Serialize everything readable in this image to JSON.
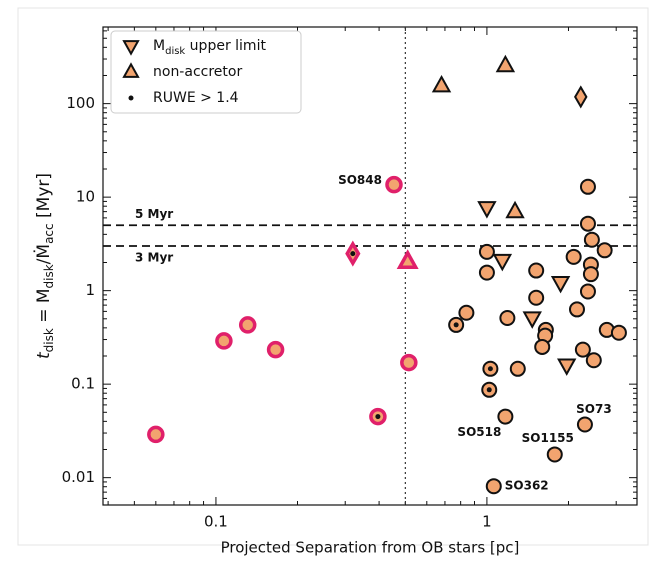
{
  "chart_data": {
    "type": "scatter",
    "xlabel": "Projected Separation from OB stars [pc]",
    "ylabel": [
      "t",
      "disk",
      " = M",
      "disk",
      "/Ṁ",
      "acc",
      " [Myr]"
    ],
    "ylabel_sub": [
      false,
      true,
      false,
      true,
      false,
      true,
      false
    ],
    "xscale": "log",
    "yscale": "log",
    "xlim": [
      0.0383,
      3.58
    ],
    "ylim": [
      0.0051,
      660
    ],
    "xticks": [
      0.1,
      1
    ],
    "yticks": [
      0.01,
      0.1,
      1,
      10,
      100
    ],
    "hlines": [
      {
        "value": 5,
        "label": "5 Myr"
      },
      {
        "value": 3,
        "label": "3 Myr"
      }
    ],
    "vlines": [
      0.5
    ],
    "legend": {
      "loc": "upper left",
      "entries": [
        {
          "marker": "triangle-down",
          "label": [
            "M",
            "disk",
            " upper limit"
          ],
          "sub": [
            false,
            true,
            false
          ]
        },
        {
          "marker": "triangle-up",
          "label": [
            "non-accretor"
          ],
          "sub": [
            false
          ]
        },
        {
          "marker": "dot",
          "label": [
            "RUWE > 1.4"
          ],
          "sub": [
            false
          ]
        }
      ]
    },
    "fill": "#f2a46f",
    "series": [
      {
        "marker": "circle",
        "edgecolor": "#111111",
        "x": [
          2.36,
          2.36,
          2.44,
          2.09,
          2.42,
          2.72,
          2.42,
          1.0,
          1.0,
          2.36,
          1.52,
          1.52,
          0.84,
          0.77,
          1.19,
          2.15,
          1.65,
          1.64,
          1.6,
          2.77,
          3.07,
          2.26,
          2.48,
          1.03,
          1.3,
          1.02,
          1.17,
          1.78,
          2.3,
          1.06
        ],
        "y": [
          12.9,
          5.2,
          3.5,
          2.3,
          1.9,
          2.7,
          1.5,
          2.6,
          1.56,
          0.98,
          1.64,
          0.84,
          0.58,
          0.43,
          0.51,
          0.63,
          0.38,
          0.33,
          0.25,
          0.38,
          0.355,
          0.234,
          0.18,
          0.146,
          0.146,
          0.087,
          0.045,
          0.0177,
          0.037,
          0.0081
        ],
        "ruwe": [
          13,
          23,
          25
        ],
        "labels": [
          null,
          null,
          null,
          null,
          null,
          null,
          null,
          null,
          null,
          null,
          null,
          null,
          null,
          null,
          null,
          null,
          null,
          null,
          null,
          null,
          null,
          null,
          null,
          null,
          null,
          null,
          "SO518",
          "SO1155",
          "SO73",
          "SO362"
        ]
      },
      {
        "marker": "triangle-up",
        "edgecolor": "#111111",
        "x": [
          0.68,
          1.17,
          1.27
        ],
        "y": [
          155,
          255,
          7.0
        ]
      },
      {
        "marker": "diamond",
        "edgecolor": "#111111",
        "x": [
          2.22
        ],
        "y": [
          118
        ]
      },
      {
        "marker": "triangle-down",
        "edgecolor": "#111111",
        "x": [
          1.0,
          1.14,
          1.47,
          1.87,
          1.97
        ],
        "y": [
          7.7,
          2.1,
          0.51,
          1.22,
          0.16
        ]
      },
      {
        "marker": "circle",
        "edgecolor": "#e0206a",
        "x": [
          0.06,
          0.107,
          0.131,
          0.166,
          0.396,
          0.454,
          0.515
        ],
        "y": [
          0.029,
          0.29,
          0.43,
          0.234,
          0.045,
          13.6,
          0.17
        ],
        "ruwe": [
          4
        ],
        "labels": [
          null,
          null,
          null,
          null,
          null,
          "SO848",
          null
        ]
      },
      {
        "marker": "triangle-up",
        "edgecolor": "#e0206a",
        "x": [
          0.51
        ],
        "y": [
          2.04
        ]
      },
      {
        "marker": "diamond",
        "edgecolor": "#e0206a",
        "x": [
          0.32
        ],
        "y": [
          2.49
        ],
        "ruwe": [
          0
        ]
      }
    ]
  }
}
